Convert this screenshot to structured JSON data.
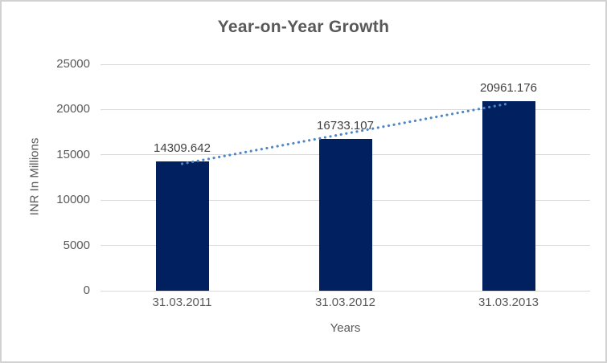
{
  "chart_data": {
    "type": "bar",
    "title": "Year-on-Year Growth",
    "xlabel": "Years",
    "ylabel": "INR In Millions",
    "categories": [
      "31.03.2011",
      "31.03.2012",
      "31.03.2013"
    ],
    "values": [
      14309.642,
      16733.107,
      20961.176
    ],
    "data_labels": [
      "14309.642",
      "16733.107",
      "20961.176"
    ],
    "yticks": [
      0,
      5000,
      10000,
      15000,
      20000,
      25000
    ],
    "ylim": [
      0,
      25000
    ],
    "grid": true,
    "legend": false,
    "trendline": {
      "type": "linear",
      "style": "dotted"
    }
  },
  "colors": {
    "bar": "#002060",
    "trendline": "#4E87C8",
    "gridline": "#D9D9D9",
    "title_text": "#595959",
    "axis_text": "#595959",
    "label_text": "#404040",
    "border": "#D2D2D2",
    "background": "#FFFFFF"
  }
}
